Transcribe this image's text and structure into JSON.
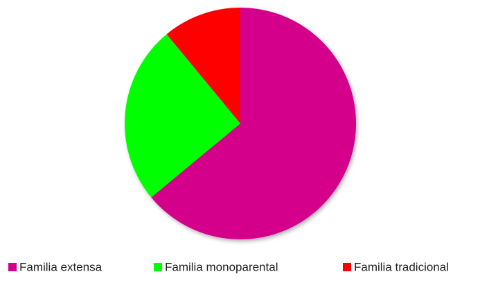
{
  "chart_data": {
    "type": "pie",
    "categories": [
      "Familia extensa",
      "Familia monoparental",
      "Familia tradicional"
    ],
    "values": [
      64,
      25,
      11
    ],
    "colors": [
      "#d4008c",
      "#00ff00",
      "#ff0000"
    ],
    "legend": "bottom"
  }
}
